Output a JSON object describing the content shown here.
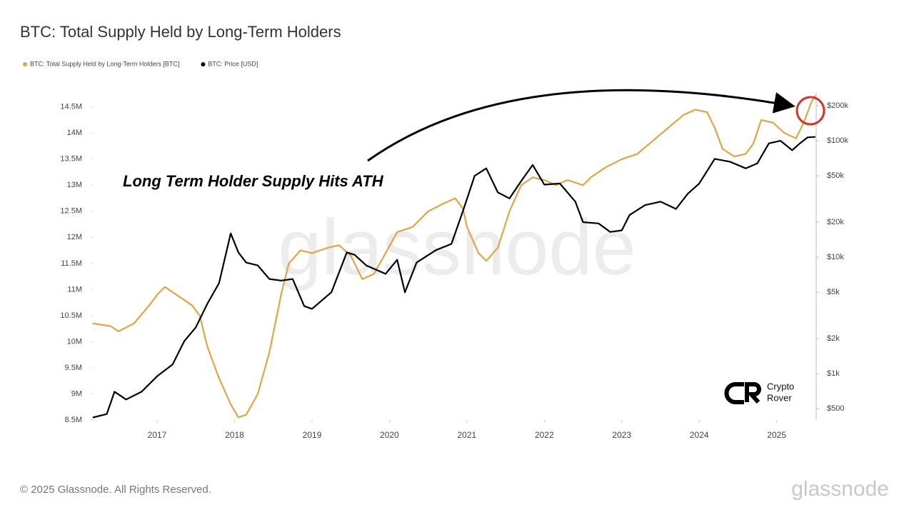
{
  "chart_data": {
    "type": "line",
    "title": "BTC: Total Supply Held by Long-Term Holders",
    "annotation": "Long Term Holder Supply Hits ATH",
    "watermark": "glassnode",
    "xlim": [
      2016.17,
      2025.51
    ],
    "xticks": [
      2017,
      2018,
      2019,
      2020,
      2021,
      2022,
      2023,
      2024,
      2025
    ],
    "ylim": [
      8500000,
      14770000
    ],
    "yticks": [
      {
        "value": 8500000,
        "label": "8.5M"
      },
      {
        "value": 9000000,
        "label": "9M"
      },
      {
        "value": 9500000,
        "label": "9.5M"
      },
      {
        "value": 10000000,
        "label": "10M"
      },
      {
        "value": 10500000,
        "label": "10.5M"
      },
      {
        "value": 11000000,
        "label": "11M"
      },
      {
        "value": 11500000,
        "label": "11.5M"
      },
      {
        "value": 12000000,
        "label": "12M"
      },
      {
        "value": 12500000,
        "label": "12.5M"
      },
      {
        "value": 13000000,
        "label": "13M"
      },
      {
        "value": 13500000,
        "label": "13.5M"
      },
      {
        "value": 14000000,
        "label": "14M"
      },
      {
        "value": 14500000,
        "label": "14.5M"
      }
    ],
    "y2lim": [
      400,
      258000
    ],
    "y2log": true,
    "y2ticks": [
      {
        "value": 500,
        "label": "$500"
      },
      {
        "value": 1000,
        "label": "$1k"
      },
      {
        "value": 2000,
        "label": "$2k"
      },
      {
        "value": 5000,
        "label": "$5k"
      },
      {
        "value": 10000,
        "label": "$10k"
      },
      {
        "value": 20000,
        "label": "$20k"
      },
      {
        "value": 50000,
        "label": "$50k"
      },
      {
        "value": 100000,
        "label": "$100k"
      },
      {
        "value": 200000,
        "label": "$200k"
      }
    ],
    "series": [
      {
        "name": "BTC: Total Supply Held by Long-Term Holders [BTC]",
        "color": "#e3a443",
        "x": [
          2016.17,
          2016.4,
          2016.5,
          2016.7,
          2016.9,
          2017.0,
          2017.1,
          2017.3,
          2017.45,
          2017.55,
          2017.65,
          2017.8,
          2017.95,
          2018.05,
          2018.15,
          2018.3,
          2018.45,
          2018.6,
          2018.7,
          2018.85,
          2019.0,
          2019.2,
          2019.35,
          2019.5,
          2019.65,
          2019.8,
          2019.95,
          2020.1,
          2020.3,
          2020.5,
          2020.7,
          2020.85,
          2020.95,
          2021.0,
          2021.15,
          2021.25,
          2021.4,
          2021.55,
          2021.7,
          2021.85,
          2022.0,
          2022.15,
          2022.3,
          2022.5,
          2022.6,
          2022.8,
          2023.0,
          2023.2,
          2023.4,
          2023.6,
          2023.8,
          2023.95,
          2024.1,
          2024.2,
          2024.3,
          2024.45,
          2024.6,
          2024.7,
          2024.8,
          2024.95,
          2025.1,
          2025.25,
          2025.35,
          2025.45,
          2025.5
        ],
        "values": [
          10350000,
          10300000,
          10200000,
          10350000,
          10700000,
          10900000,
          11050000,
          10850000,
          10700000,
          10500000,
          9900000,
          9300000,
          8800000,
          8550000,
          8600000,
          9000000,
          9800000,
          10900000,
          11500000,
          11750000,
          11700000,
          11800000,
          11850000,
          11650000,
          11200000,
          11300000,
          11700000,
          12100000,
          12200000,
          12500000,
          12650000,
          12750000,
          12550000,
          12200000,
          11700000,
          11550000,
          11800000,
          12500000,
          13000000,
          13150000,
          13100000,
          13000000,
          13100000,
          13000000,
          13150000,
          13350000,
          13500000,
          13600000,
          13850000,
          14100000,
          14350000,
          14450000,
          14400000,
          14100000,
          13700000,
          13550000,
          13600000,
          13800000,
          14250000,
          14200000,
          14000000,
          13900000,
          14200000,
          14600000,
          14720000
        ]
      },
      {
        "name": "BTC: Price [USD]",
        "color": "#000000",
        "axis": "y2",
        "x": [
          2016.17,
          2016.35,
          2016.45,
          2016.6,
          2016.8,
          2017.0,
          2017.2,
          2017.35,
          2017.5,
          2017.65,
          2017.8,
          2017.95,
          2018.05,
          2018.15,
          2018.3,
          2018.45,
          2018.6,
          2018.75,
          2018.9,
          2019.0,
          2019.25,
          2019.45,
          2019.55,
          2019.7,
          2019.95,
          2020.1,
          2020.2,
          2020.35,
          2020.6,
          2020.8,
          2020.95,
          2021.1,
          2021.25,
          2021.4,
          2021.55,
          2021.7,
          2021.85,
          2022.0,
          2022.2,
          2022.4,
          2022.5,
          2022.7,
          2022.85,
          2023.0,
          2023.1,
          2023.3,
          2023.5,
          2023.7,
          2023.85,
          2024.0,
          2024.2,
          2024.4,
          2024.6,
          2024.75,
          2024.9,
          2025.05,
          2025.2,
          2025.3,
          2025.4,
          2025.5
        ],
        "values": [
          420,
          450,
          700,
          600,
          700,
          950,
          1200,
          1900,
          2500,
          4000,
          6000,
          16000,
          11000,
          9000,
          8500,
          6500,
          6300,
          6500,
          3800,
          3600,
          5000,
          11000,
          10500,
          8500,
          7200,
          9500,
          5000,
          9000,
          11500,
          13000,
          25000,
          50000,
          58000,
          36000,
          32000,
          45000,
          62000,
          42000,
          43000,
          30000,
          20000,
          19500,
          16500,
          17000,
          23000,
          28000,
          30000,
          26000,
          35000,
          43000,
          70000,
          66000,
          58000,
          64000,
          95000,
          100000,
          83000,
          95000,
          107000,
          108000
        ]
      }
    ]
  },
  "branding": {
    "lines": [
      "Crypto",
      "Rover"
    ]
  },
  "footer": {
    "copyright": "© 2025 Glassnode. All Rights Reserved.",
    "logo": "glassnode"
  }
}
